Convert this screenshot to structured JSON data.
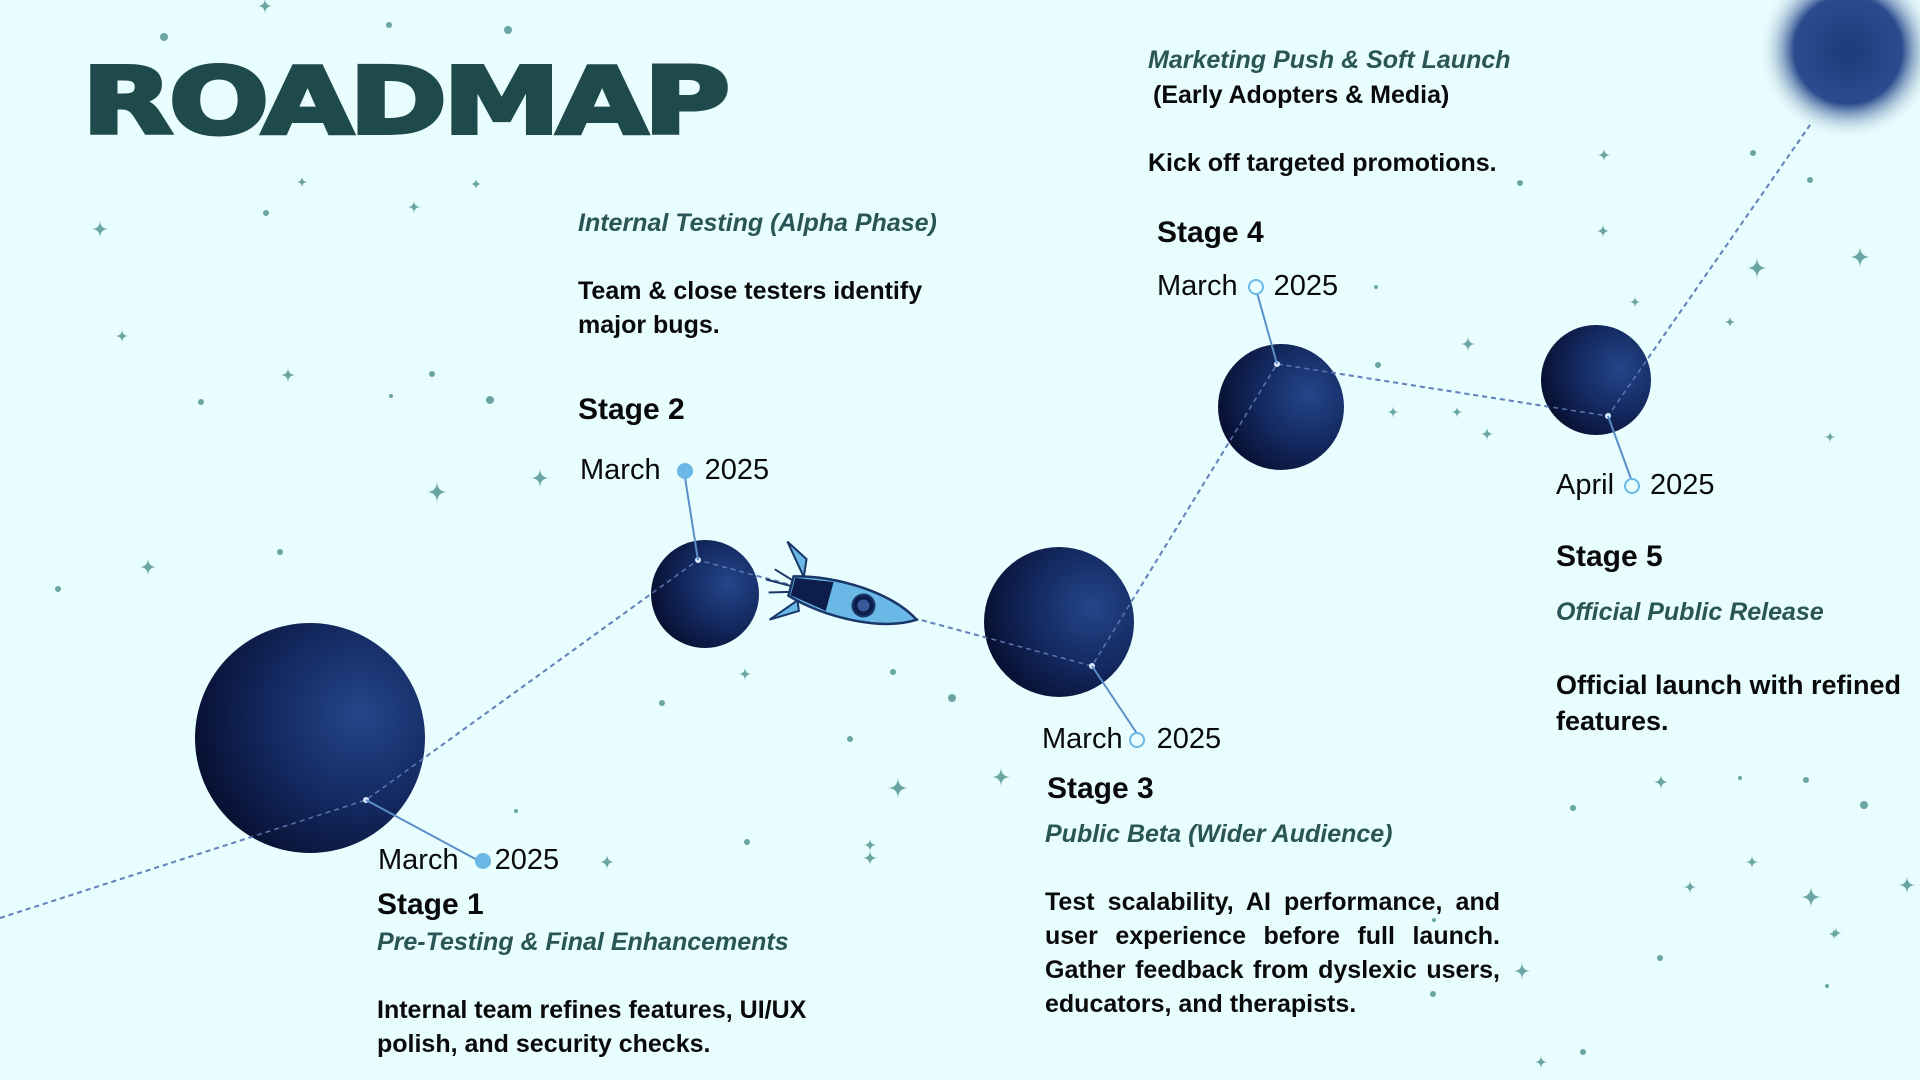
{
  "title": "ROADMAP",
  "colors": {
    "background": "#e8fdfd",
    "title": "#1f4a4c",
    "planet_dark": "#0b1a45",
    "planet_light": "#1e3a7a",
    "accent": "#6ab8e6",
    "subtitle": "#2a5556"
  },
  "icons": [
    "rocket-icon",
    "planet-icon",
    "star-icon"
  ],
  "stages": [
    {
      "label": "Stage 1",
      "subtitle": "Pre-Testing & Final Enhancements",
      "description": "Internal team refines features, UI/UX polish, and security checks.",
      "month": "March",
      "year": "2025",
      "marker": "filled"
    },
    {
      "label": "Stage 2",
      "subtitle": "Internal Testing (Alpha Phase)",
      "description": "Team & close testers identify major bugs.",
      "month": "March",
      "year": "2025",
      "marker": "filled"
    },
    {
      "label": "Stage 3",
      "subtitle": "Public Beta (Wider Audience)",
      "description": "Test scalability, AI performance, and user experience before full launch. Gather feedback from dyslexic users, educators, and therapists.",
      "month": "March",
      "year": "2025",
      "marker": "hollow"
    },
    {
      "label": "Stage 4",
      "subtitle": "Marketing Push & Soft Launch",
      "subtitle2": "(Early Adopters & Media)",
      "description": "Kick off targeted promotions.",
      "month": "March",
      "year": "2025",
      "marker": "hollow"
    },
    {
      "label": "Stage 5",
      "subtitle": "Official Public Release",
      "description": "Official launch with refined features.",
      "month": "April",
      "year": "2025",
      "marker": "hollow"
    }
  ]
}
